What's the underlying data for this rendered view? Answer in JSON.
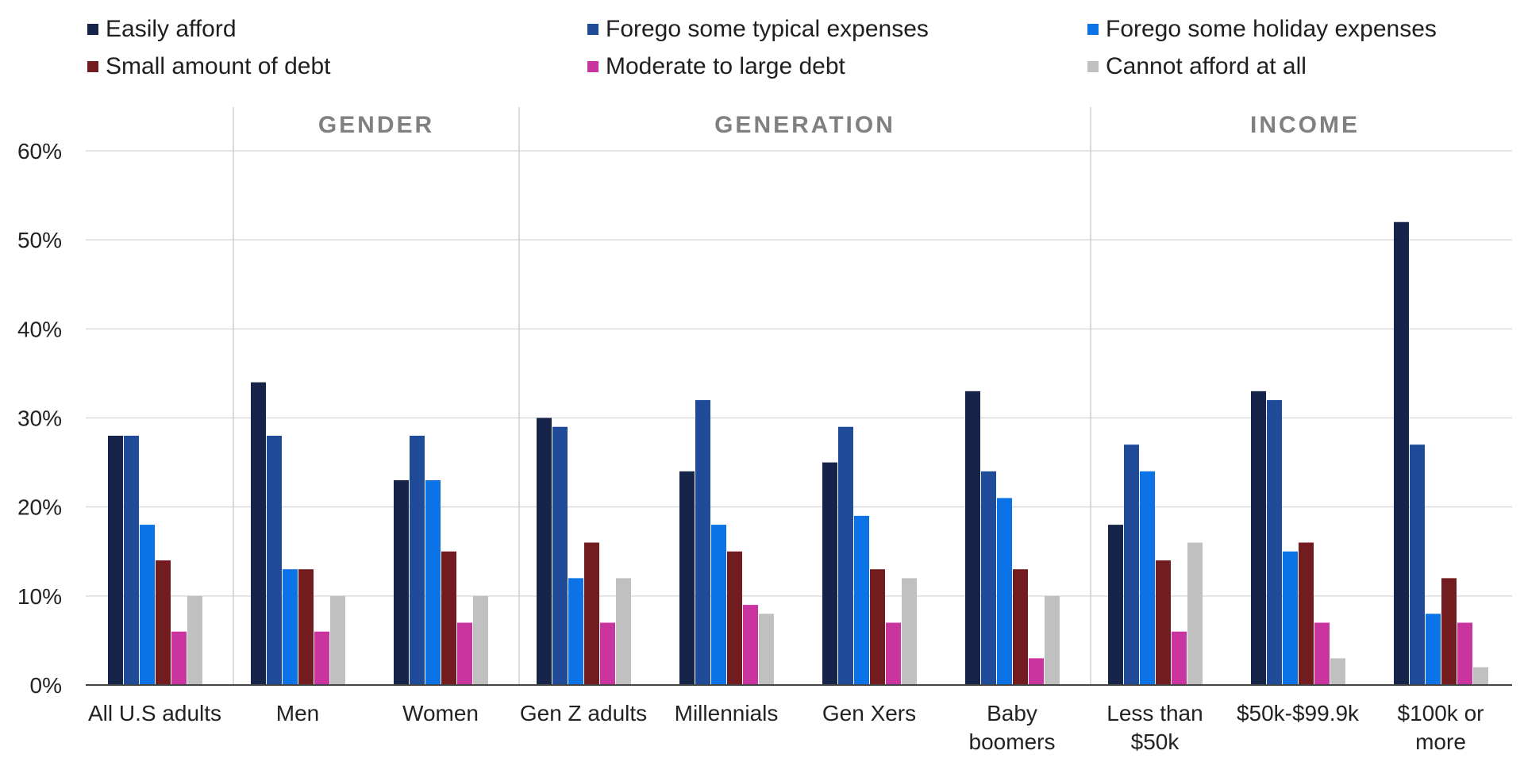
{
  "chart_data": {
    "type": "bar",
    "title": "",
    "xlabel": "",
    "ylabel": "",
    "ylim": [
      0,
      60
    ],
    "yticks": [
      0,
      10,
      20,
      30,
      40,
      50,
      60
    ],
    "ytick_suffix": "%",
    "grid": true,
    "legend_position": "top",
    "categories": [
      [
        "All U.S adults"
      ],
      [
        "Men"
      ],
      [
        "Women"
      ],
      [
        "Gen Z adults"
      ],
      [
        "Millennials"
      ],
      [
        "Gen Xers"
      ],
      [
        "Baby",
        "boomers"
      ],
      [
        "Less than",
        "$50k"
      ],
      [
        "$50k-$99.9k"
      ],
      [
        "$100k or",
        "more"
      ]
    ],
    "groups": [
      {
        "label": "",
        "start": 0,
        "end": 0
      },
      {
        "label": "GENDER",
        "start": 1,
        "end": 2
      },
      {
        "label": "GENERATION",
        "start": 3,
        "end": 6
      },
      {
        "label": "INCOME",
        "start": 7,
        "end": 9
      }
    ],
    "series": [
      {
        "name": "Easily afford",
        "color": "#162449",
        "values": [
          28,
          34,
          23,
          30,
          24,
          25,
          33,
          18,
          33,
          52
        ]
      },
      {
        "name": "Forego some typical expenses",
        "color": "#1f4b99",
        "values": [
          28,
          28,
          28,
          29,
          32,
          29,
          24,
          27,
          32,
          27
        ]
      },
      {
        "name": "Forego some holiday expenses",
        "color": "#0b73e6",
        "values": [
          18,
          13,
          23,
          12,
          18,
          19,
          21,
          24,
          15,
          8
        ]
      },
      {
        "name": "Small amount of debt",
        "color": "#721c1f",
        "values": [
          14,
          13,
          15,
          16,
          15,
          13,
          13,
          14,
          16,
          12
        ]
      },
      {
        "name": "Moderate to large debt",
        "color": "#c9349e",
        "values": [
          6,
          6,
          7,
          7,
          9,
          7,
          3,
          6,
          7,
          7
        ]
      },
      {
        "name": "Cannot afford at all",
        "color": "#c0c0c0",
        "values": [
          10,
          10,
          10,
          12,
          8,
          12,
          10,
          16,
          3,
          2
        ]
      }
    ]
  }
}
